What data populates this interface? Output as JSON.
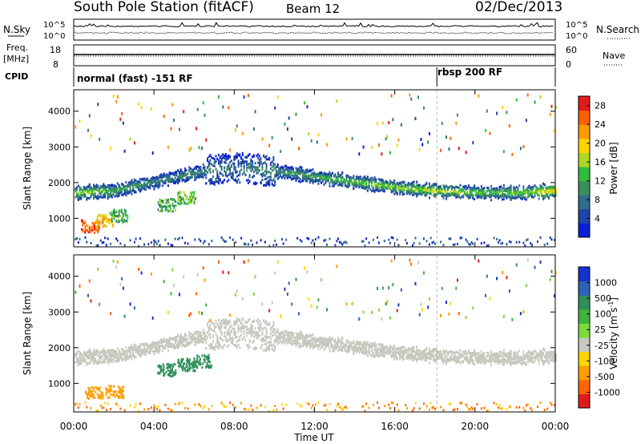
{
  "header": {
    "station": "South Pole Station (fitACF)",
    "beam": "Beam 12",
    "date": "02/Dec/2013"
  },
  "status_panels": {
    "nsky_label": "N.Sky",
    "nsearch_label": "N.Search",
    "noise_ticks": [
      "10^5",
      "10^0"
    ],
    "freq_label": "Freq.",
    "freq_unit": "[MHz]",
    "freq_ticks": [
      "18",
      "8"
    ],
    "nave_label": "Nave",
    "nave_ticks": [
      "60",
      "0"
    ],
    "cpid_label": "CPID",
    "cpid_segments": [
      {
        "label": "normal (fast) -151 RF",
        "start_hour": 0
      },
      {
        "label": "rbsp 200 RF",
        "start_hour": 18.1
      }
    ]
  },
  "chart_data": [
    {
      "type": "heatmap",
      "title": "",
      "xlabel": "Time UT",
      "ylabel": "Slant Range [km]",
      "x_ticks": [
        "00:00",
        "04:00",
        "08:00",
        "12:00",
        "16:00",
        "20:00",
        "00:00"
      ],
      "xlim": [
        0,
        24
      ],
      "y_ticks": [
        "1000",
        "2000",
        "3000",
        "4000"
      ],
      "ylim": [
        200,
        4600
      ],
      "colorbar": {
        "label": "Power [dB]",
        "ticks": [
          "4",
          "8",
          "12",
          "16",
          "20",
          "24",
          "28"
        ],
        "range": [
          0,
          30
        ],
        "colors": [
          "#0a1fd6",
          "#1f44a8",
          "#2f6e8c",
          "#3b8f5e",
          "#2fbd3d",
          "#b0d620",
          "#ffd400",
          "#ff9a00",
          "#ff6000",
          "#e41a1a"
        ]
      },
      "scatter_band": [
        {
          "hour": 0.0,
          "range": 1750,
          "value": 14
        },
        {
          "hour": 2.0,
          "range": 1800,
          "value": 10
        },
        {
          "hour": 4.0,
          "range": 2050,
          "value": 8
        },
        {
          "hour": 6.0,
          "range": 2300,
          "value": 8
        },
        {
          "hour": 8.0,
          "range": 2450,
          "value": 6
        },
        {
          "hour": 10.0,
          "range": 2350,
          "value": 8
        },
        {
          "hour": 12.0,
          "range": 2200,
          "value": 10
        },
        {
          "hour": 14.0,
          "range": 2050,
          "value": 12
        },
        {
          "hour": 16.0,
          "range": 1900,
          "value": 12
        },
        {
          "hour": 18.0,
          "range": 1800,
          "value": 14
        },
        {
          "hour": 20.0,
          "range": 1750,
          "value": 12
        },
        {
          "hour": 22.0,
          "range": 1750,
          "value": 12
        },
        {
          "hour": 24.0,
          "range": 1800,
          "value": 16
        }
      ],
      "near_range_echo": [
        {
          "hour": 0.8,
          "range": 800,
          "value": 26
        },
        {
          "hour": 1.5,
          "range": 950,
          "value": 20
        },
        {
          "hour": 2.2,
          "range": 1100,
          "value": 12
        },
        {
          "hour": 4.6,
          "range": 1400,
          "value": 12
        },
        {
          "hour": 5.6,
          "range": 1600,
          "value": 14
        }
      ]
    },
    {
      "type": "heatmap",
      "title": "",
      "xlabel": "Time UT",
      "ylabel": "Slant Range [km]",
      "x_ticks": [
        "00:00",
        "04:00",
        "08:00",
        "12:00",
        "16:00",
        "20:00",
        "00:00"
      ],
      "xlim": [
        0,
        24
      ],
      "y_ticks": [
        "1000",
        "2000",
        "3000",
        "4000"
      ],
      "ylim": [
        200,
        4600
      ],
      "colorbar": {
        "label": "Velocity [m s-1]",
        "label_main": "Velocity [m s",
        "label_sup": "-1",
        "label_close": "]",
        "ticks": [
          "1000",
          "500",
          "100",
          "25",
          "-25",
          "-100",
          "-500",
          "-1000"
        ],
        "colors": [
          "#1433cc",
          "#2c63b8",
          "#2f8f5a",
          "#3fb43a",
          "#7ddc3a",
          "#c8c8c0",
          "#ffd600",
          "#ff9e00",
          "#ff6600",
          "#e01a1a"
        ]
      },
      "scatter_band_velocity": "ground scatter ~0 m/s",
      "near_range_velocity": [
        {
          "hour": 1.0,
          "range": 750,
          "value": -200
        },
        {
          "hour": 2.0,
          "range": 800,
          "value": -100
        },
        {
          "hour": 4.6,
          "range": 1400,
          "value": 150
        },
        {
          "hour": 5.6,
          "range": 1550,
          "value": 150
        },
        {
          "hour": 6.4,
          "range": 1650,
          "value": 200
        }
      ]
    }
  ]
}
